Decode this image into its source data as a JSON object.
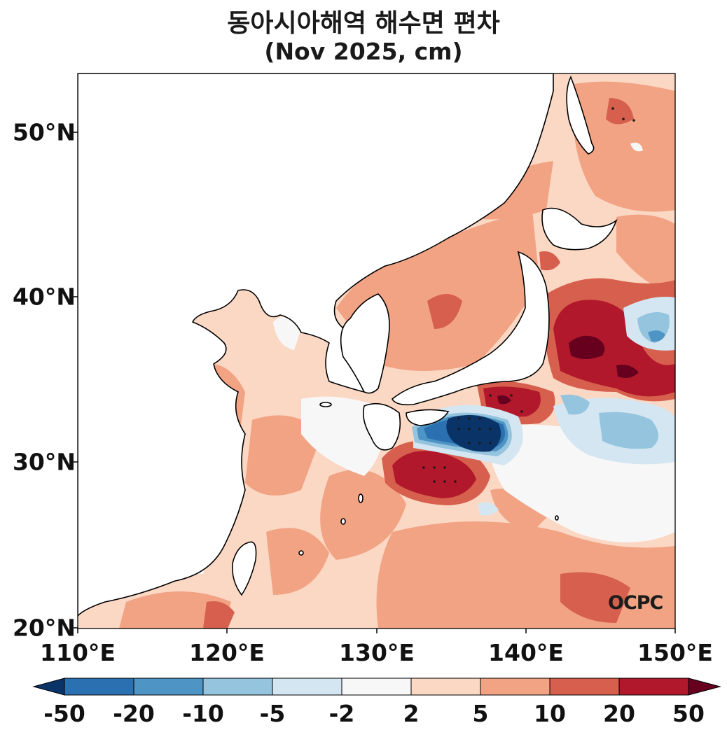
{
  "title": {
    "line1": "동아시아해역 해수면 편차",
    "line2": "(Nov 2025, cm)"
  },
  "map": {
    "lat_ticks": [
      "20°N",
      "30°N",
      "40°N",
      "50°N"
    ],
    "lon_ticks": [
      "110°E",
      "120°E",
      "130°E",
      "140°E",
      "150°E"
    ],
    "extent": {
      "lon_min": 110,
      "lon_max": 150,
      "lat_min": 20,
      "lat_max": 53.5
    },
    "credit": "OCPC",
    "anomaly_features": [
      {
        "name": "negative anomaly south of Japan",
        "lon": 136.2,
        "lat": 32.0,
        "value": "below -50 cm"
      },
      {
        "name": "positive anomaly south of Kyushu",
        "lon": 134.0,
        "lat": 29.4,
        "value": "20 to 50 cm"
      },
      {
        "name": "positive anomaly east of Japan",
        "lon": 145.0,
        "lat": 36.8,
        "value": "above 50 cm"
      },
      {
        "name": "positive anomaly near Izu",
        "lon": 138.7,
        "lat": 34.0,
        "value": "20 to 50 cm"
      },
      {
        "name": "negative anomaly off Kuroshio Extension",
        "lon": 147.0,
        "lat": 32.2,
        "value": "-5 to -20 cm"
      }
    ]
  },
  "colorbar": {
    "labels": [
      "-50",
      "-20",
      "-10",
      "-5",
      "-2",
      "2",
      "5",
      "10",
      "20",
      "50"
    ],
    "colors": [
      "#0a3468",
      "#2b70b0",
      "#4e95c5",
      "#95c4de",
      "#d3e6f1",
      "#f7f7f7",
      "#fbd8c4",
      "#f1a384",
      "#d6604d",
      "#b2182b",
      "#67001f"
    ]
  },
  "land_color": "#ffffff",
  "ocean_base_color": "#fbd8c4"
}
